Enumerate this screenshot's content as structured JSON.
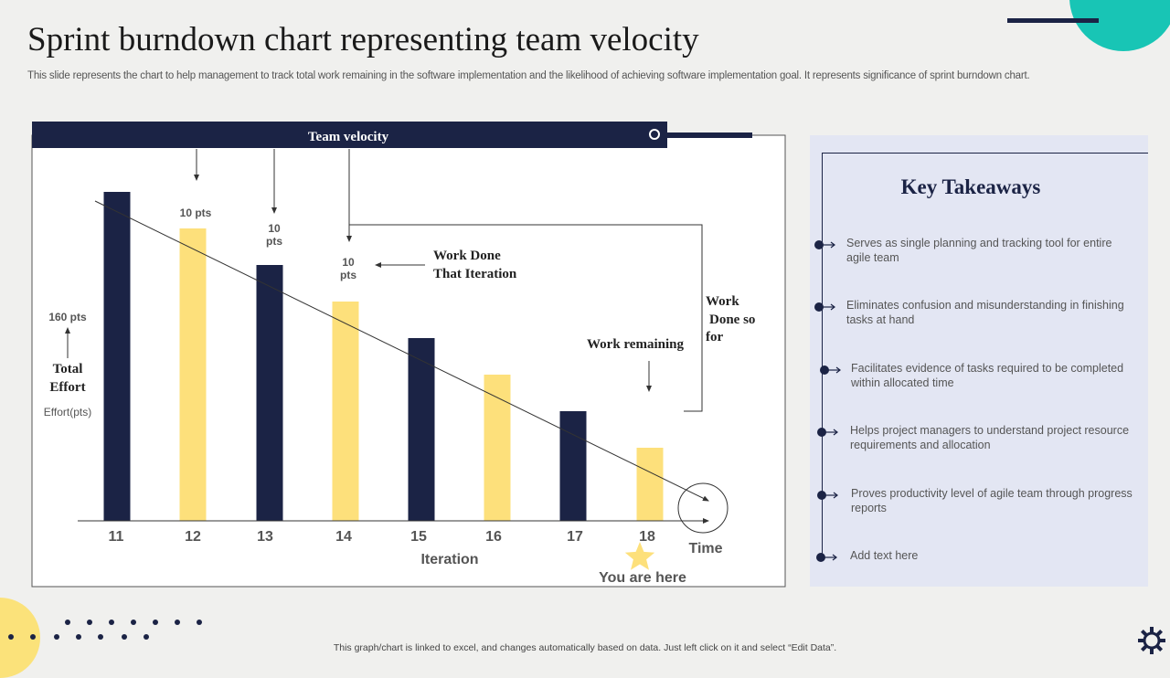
{
  "title": "Sprint burndown chart representing team velocity",
  "subtitle": "This slide represents the chart to help management to track total work remaining in the software implementation and the likelihood of achieving software implementation goal. It represents significance of sprint burndown chart.",
  "footer_note": "This graph/chart is linked to excel, and changes automatically based on data. Just left click on it and select “Edit Data”.",
  "colors": {
    "navy": "#1b2345",
    "yellow": "#fde07b",
    "teal": "#18c5b5",
    "panel": "#e3e6f3"
  },
  "chart": {
    "header": "Team velocity",
    "label_10pts_a": "10 pts",
    "label_10_b": "10",
    "label_pts_b": "pts",
    "label_10_c": "10",
    "label_pts_c": "pts",
    "work_done_line1": "Work Done",
    "work_done_line2": "That Iteration",
    "work_so_far_line1": "Work",
    "work_so_far_line2": "Done so",
    "work_so_far_line3": "for",
    "work_remaining": "Work remaining",
    "total_160": "160 pts",
    "total_effort_line1": "Total",
    "total_effort_line2": "Effort",
    "effort_unit": "Effort(pts)",
    "time_label": "Time",
    "you_are_here": "You are here"
  },
  "chart_data": {
    "type": "bar",
    "title": "Team velocity",
    "xlabel": "Iteration",
    "ylabel": "Effort(pts)",
    "categories": [
      "11",
      "12",
      "13",
      "14",
      "15",
      "16",
      "17",
      "18"
    ],
    "values": [
      180,
      160,
      140,
      120,
      100,
      80,
      60,
      40
    ],
    "bar_colors": [
      "#1b2345",
      "#fde07b",
      "#1b2345",
      "#fde07b",
      "#1b2345",
      "#fde07b",
      "#1b2345",
      "#fde07b"
    ],
    "ylim": [
      0,
      200
    ],
    "grid": false,
    "annotations": [
      "160 pts",
      "10 pts",
      "Work Done That Iteration",
      "Work Done so for",
      "Work remaining",
      "You are here"
    ]
  },
  "takeaways": {
    "title": "Key Takeaways",
    "items": [
      "Serves as single planning and tracking tool for entire agile team",
      "Eliminates confusion and misunderstanding in finishing tasks at hand",
      "Facilitates evidence  of tasks required to be completed within allocated time",
      "Helps project managers to understand project resource requirements and allocation",
      "Proves productivity level of agile team through progress reports",
      "Add text here"
    ]
  }
}
